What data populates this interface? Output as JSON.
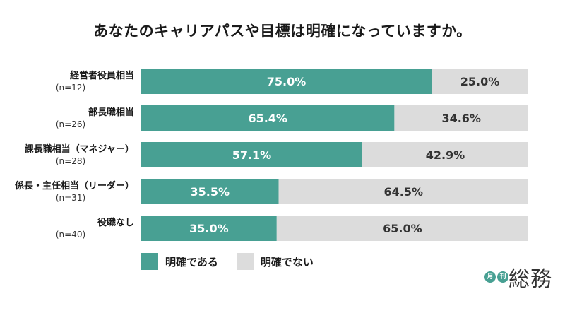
{
  "title": "あなたのキャリアパスや目標は明確になっていますか。",
  "colors": {
    "clear": "#48a093",
    "unclear": "#dcdcdc",
    "label_text": "#1a1a1a",
    "value_on_dark": "#ffffff",
    "value_on_light": "#333333",
    "logo_green": "#48a093"
  },
  "legend": [
    {
      "label": "明確である",
      "color_key": "clear"
    },
    {
      "label": "明確でない",
      "color_key": "unclear"
    }
  ],
  "logo": {
    "circle_1": "月",
    "circle_2": "刊",
    "text": "総務"
  },
  "chart_data": {
    "type": "bar",
    "orientation": "horizontal",
    "stacked": true,
    "percent": true,
    "title": "あなたのキャリアパスや目標は明確になっていますか。",
    "categories": [
      {
        "label": "経営者役員相当",
        "n": "(n=12)"
      },
      {
        "label": "部長職相当",
        "n": "(n=26)"
      },
      {
        "label": "課長職相当（マネジャー）",
        "n": "(n=28)"
      },
      {
        "label": "係長・主任相当（リーダー）",
        "n": "(n=31)"
      },
      {
        "label": "役職なし",
        "n": "(n=40)"
      }
    ],
    "series": [
      {
        "name": "明確である",
        "values": [
          75.0,
          65.4,
          57.1,
          35.5,
          35.0
        ],
        "labels": [
          "75.0%",
          "65.4%",
          "57.1%",
          "35.5%",
          "35.0%"
        ]
      },
      {
        "name": "明確でない",
        "values": [
          25.0,
          34.6,
          42.9,
          64.5,
          65.0
        ],
        "labels": [
          "25.0%",
          "34.6%",
          "42.9%",
          "64.5%",
          "65.0%"
        ]
      }
    ],
    "xlim": [
      0,
      100
    ]
  }
}
